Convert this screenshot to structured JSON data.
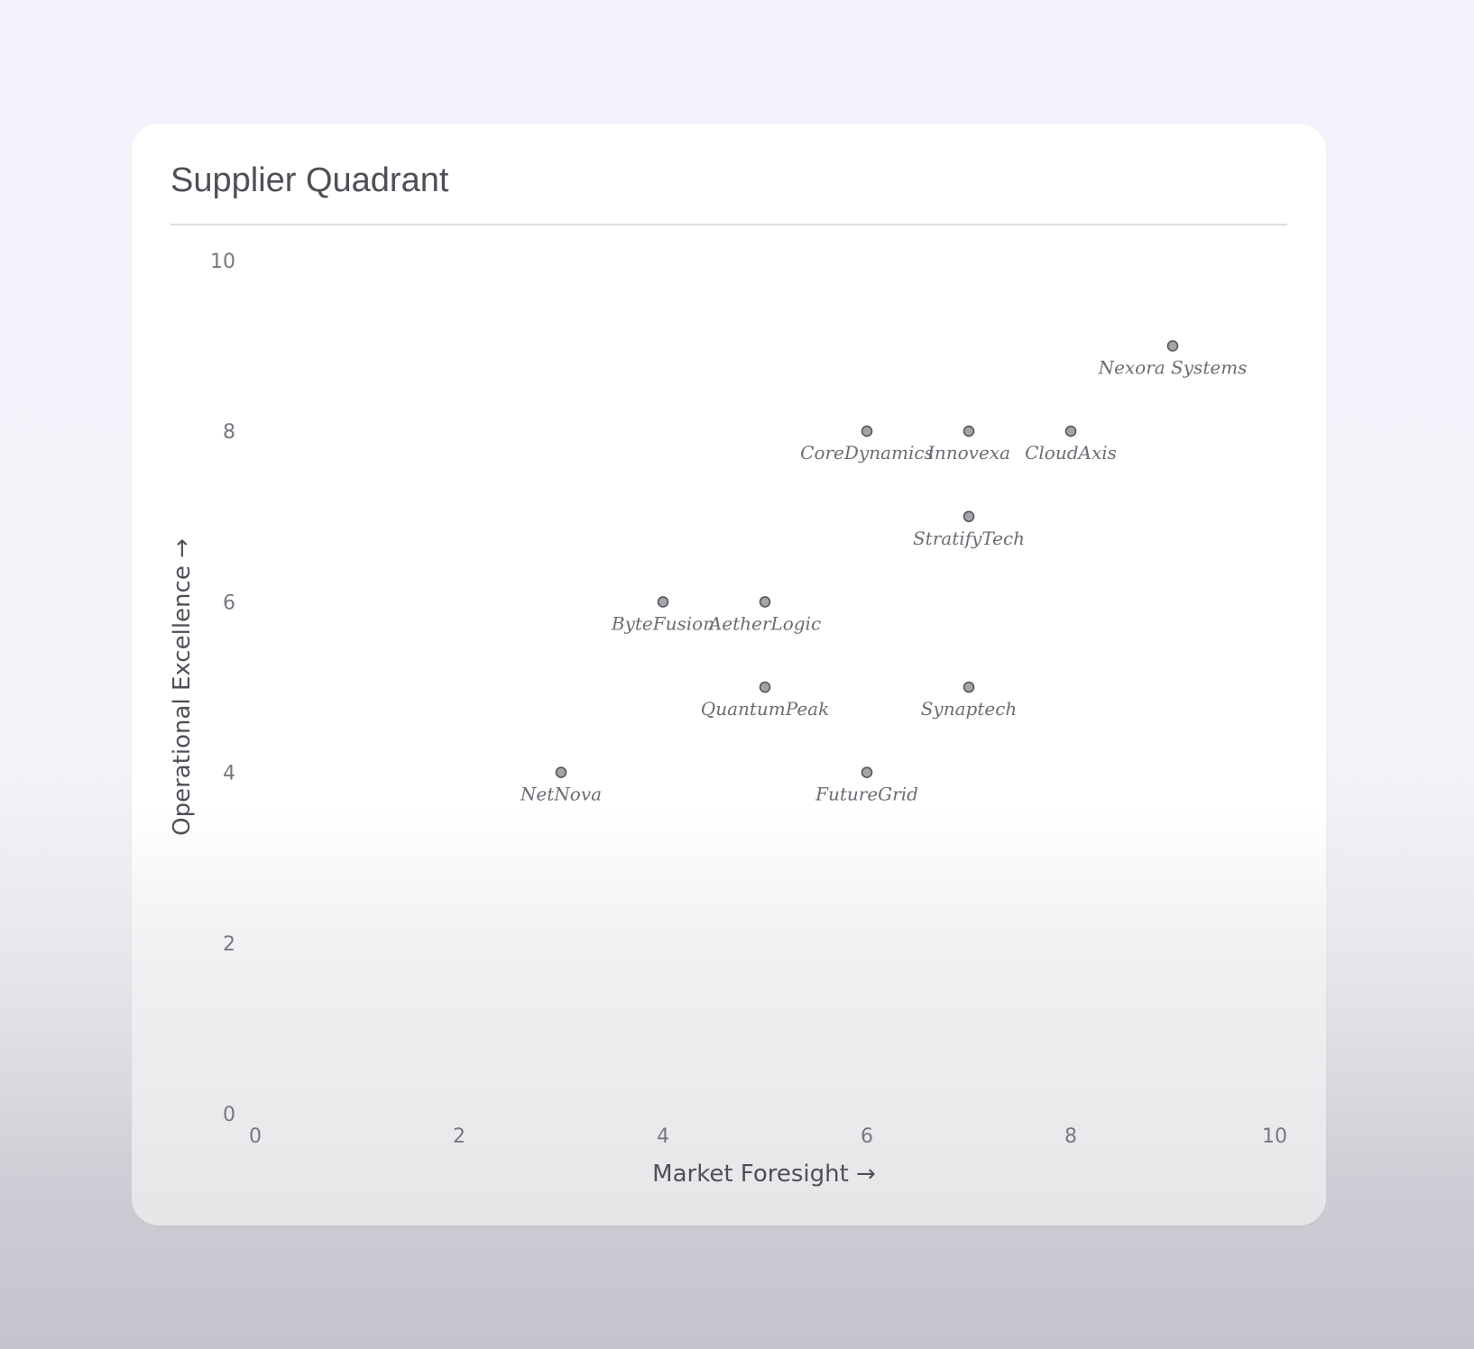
{
  "card": {
    "title": "Supplier Quadrant"
  },
  "chart_data": {
    "type": "scatter",
    "title": "Supplier Quadrant",
    "xlabel": "Market Foresight →",
    "ylabel": "Operational Excellence →",
    "xlim": [
      0,
      10
    ],
    "ylim": [
      0,
      10
    ],
    "xticks": [
      "0",
      "2",
      "4",
      "6",
      "8",
      "10"
    ],
    "yticks": [
      "0",
      "2",
      "4",
      "6",
      "8",
      "10"
    ],
    "grid": false,
    "points": [
      {
        "label": "Nexora Systems",
        "x": 9,
        "y": 9
      },
      {
        "label": "CoreDynamics",
        "x": 6,
        "y": 8
      },
      {
        "label": "Innovexa",
        "x": 7,
        "y": 8
      },
      {
        "label": "CloudAxis",
        "x": 8,
        "y": 8
      },
      {
        "label": "StratifyTech",
        "x": 7,
        "y": 7
      },
      {
        "label": "ByteFusion",
        "x": 4,
        "y": 6
      },
      {
        "label": "AetherLogic",
        "x": 5,
        "y": 6
      },
      {
        "label": "QuantumPeak",
        "x": 5,
        "y": 5
      },
      {
        "label": "Synaptech",
        "x": 7,
        "y": 5
      },
      {
        "label": "NetNova",
        "x": 3,
        "y": 4
      },
      {
        "label": "FutureGrid",
        "x": 6,
        "y": 4
      }
    ],
    "colors": {
      "point_fill": "#a4a4a8",
      "point_stroke": "#55555c",
      "label": "#6c6c74"
    }
  }
}
